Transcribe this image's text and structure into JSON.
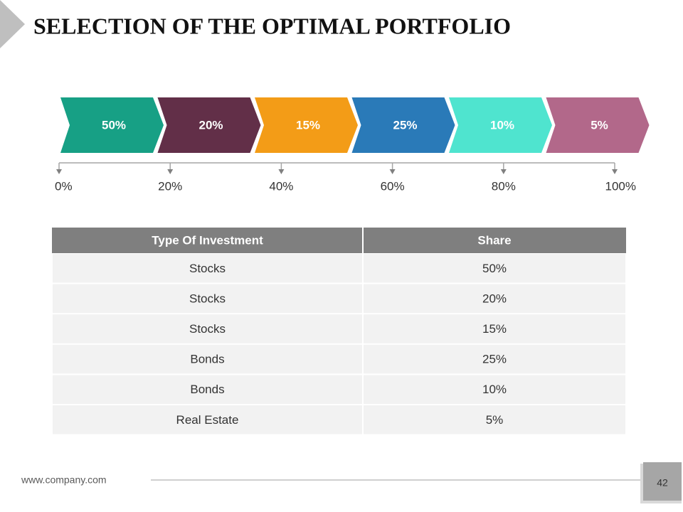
{
  "title": "SELECTION OF THE OPTIMAL PORTFOLIO",
  "chevrons": [
    {
      "label": "50%",
      "color": "#17a085"
    },
    {
      "label": "20%",
      "color": "#622f48"
    },
    {
      "label": "15%",
      "color": "#f39c17"
    },
    {
      "label": "25%",
      "color": "#2a7ab8"
    },
    {
      "label": "10%",
      "color": "#4fe4cf"
    },
    {
      "label": "5%",
      "color": "#b2688a"
    }
  ],
  "scale": [
    "0%",
    "20%",
    "40%",
    "60%",
    "80%",
    "100%"
  ],
  "table": {
    "header": [
      "Type Of Investment",
      "Share"
    ],
    "rows": [
      [
        "Stocks",
        "50%"
      ],
      [
        "Stocks",
        "20%"
      ],
      [
        "Stocks",
        "15%"
      ],
      [
        "Bonds",
        "25%"
      ],
      [
        "Bonds",
        "10%"
      ],
      [
        "Real Estate",
        "5%"
      ]
    ]
  },
  "footer": {
    "url": "www.company.com",
    "page": "42"
  }
}
